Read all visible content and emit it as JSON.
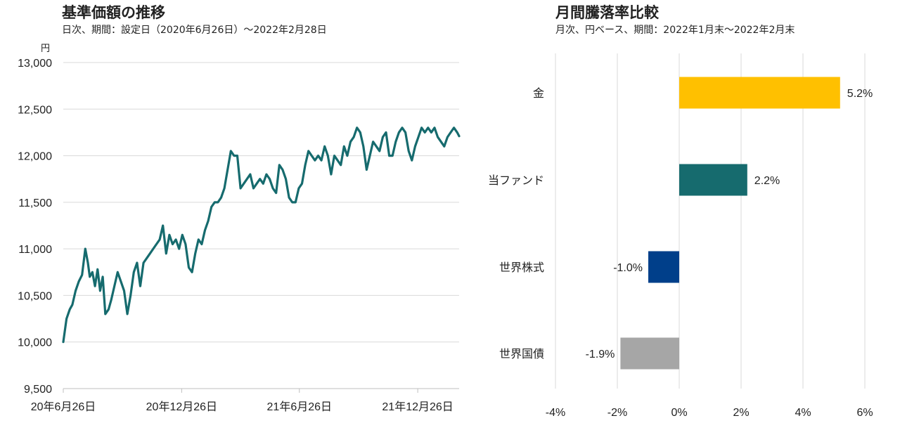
{
  "left_panel": {
    "title": "基準価額の推移",
    "subtitle": "日次、期間：設定日（2020年6月26日）～2022年2月28日"
  },
  "right_panel": {
    "title": "月間騰落率比較",
    "subtitle": "月次、円ベース、期間：2022年1月末～2022年2月末"
  },
  "colors": {
    "line": "#166b6e",
    "gold": "#ffc000",
    "fund": "#166b6e",
    "stocks": "#003f8a",
    "bonds": "#a6a6a6"
  },
  "chart_data": [
    {
      "type": "line",
      "title": "基準価額の推移",
      "ylabel": "円",
      "ylim": [
        9500,
        13000
      ],
      "yticks": [
        "9,500",
        "10,000",
        "10,500",
        "11,000",
        "11,500",
        "12,000",
        "12,500",
        "13,000"
      ],
      "xticks": [
        "20年6月26日",
        "20年12月26日",
        "21年6月26日",
        "21年12月26日"
      ],
      "grid": true,
      "series": [
        {
          "x": [
            "2020-06-26",
            "2020-07-01",
            "2020-07-06",
            "2020-07-10",
            "2020-07-15",
            "2020-07-20",
            "2020-07-25",
            "2020-07-30",
            "2020-08-03",
            "2020-08-06",
            "2020-08-10",
            "2020-08-14",
            "2020-08-18",
            "2020-08-22",
            "2020-08-26",
            "2020-08-30",
            "2020-09-04",
            "2020-09-08",
            "2020-09-13",
            "2020-09-18",
            "2020-09-23",
            "2020-09-28",
            "2020-10-03",
            "2020-10-08",
            "2020-10-13",
            "2020-10-18",
            "2020-10-23",
            "2020-10-28",
            "2020-11-02",
            "2020-11-07",
            "2020-11-12",
            "2020-11-17",
            "2020-11-22",
            "2020-11-27",
            "2020-12-02",
            "2020-12-07",
            "2020-12-12",
            "2020-12-17",
            "2020-12-22",
            "2020-12-27",
            "2021-01-01",
            "2021-01-06",
            "2021-01-11",
            "2021-01-16",
            "2021-01-21",
            "2021-01-26",
            "2021-01-31",
            "2021-02-05",
            "2021-02-10",
            "2021-02-15",
            "2021-02-20",
            "2021-02-25",
            "2021-03-02",
            "2021-03-07",
            "2021-03-12",
            "2021-03-17",
            "2021-03-22",
            "2021-03-27",
            "2021-04-01",
            "2021-04-06",
            "2021-04-11",
            "2021-04-16",
            "2021-04-21",
            "2021-04-26",
            "2021-05-01",
            "2021-05-06",
            "2021-05-11",
            "2021-05-16",
            "2021-05-21",
            "2021-05-26",
            "2021-05-31",
            "2021-06-05",
            "2021-06-10",
            "2021-06-15",
            "2021-06-20",
            "2021-06-25",
            "2021-06-30",
            "2021-07-05",
            "2021-07-10",
            "2021-07-15",
            "2021-07-20",
            "2021-07-25",
            "2021-07-30",
            "2021-08-04",
            "2021-08-09",
            "2021-08-14",
            "2021-08-19",
            "2021-08-24",
            "2021-08-29",
            "2021-09-03",
            "2021-09-08",
            "2021-09-13",
            "2021-09-18",
            "2021-09-23",
            "2021-09-28",
            "2021-10-03",
            "2021-10-08",
            "2021-10-13",
            "2021-10-18",
            "2021-10-23",
            "2021-10-28",
            "2021-11-02",
            "2021-11-07",
            "2021-11-12",
            "2021-11-17",
            "2021-11-22",
            "2021-11-27",
            "2021-12-02",
            "2021-12-07",
            "2021-12-12",
            "2021-12-17",
            "2021-12-22",
            "2021-12-27",
            "2022-01-01",
            "2022-01-06",
            "2022-01-11",
            "2022-01-16",
            "2022-01-21",
            "2022-01-26",
            "2022-01-31",
            "2022-02-05",
            "2022-02-10",
            "2022-02-15",
            "2022-02-20",
            "2022-02-25",
            "2022-02-28"
          ],
          "y": [
            10000,
            10250,
            10350,
            10400,
            10550,
            10650,
            10720,
            11000,
            10850,
            10700,
            10750,
            10600,
            10780,
            10550,
            10700,
            10300,
            10350,
            10450,
            10600,
            10750,
            10650,
            10550,
            10300,
            10500,
            10750,
            10850,
            10600,
            10850,
            10900,
            10950,
            11000,
            11050,
            11100,
            11250,
            10950,
            11150,
            11050,
            11100,
            11000,
            11150,
            11050,
            10800,
            10750,
            10950,
            11100,
            11050,
            11200,
            11300,
            11450,
            11500,
            11500,
            11550,
            11650,
            11850,
            12050,
            12000,
            12000,
            11650,
            11700,
            11750,
            11800,
            11650,
            11700,
            11750,
            11700,
            11800,
            11750,
            11650,
            11600,
            11900,
            11850,
            11750,
            11550,
            11500,
            11500,
            11650,
            11700,
            11900,
            12050,
            12000,
            11950,
            12000,
            11950,
            12100,
            12000,
            11800,
            12000,
            11950,
            11900,
            12100,
            12000,
            12150,
            12200,
            12300,
            12250,
            12100,
            11850,
            12000,
            12150,
            12100,
            12050,
            12200,
            12250,
            12000,
            12000,
            12150,
            12250,
            12300,
            12250,
            12050,
            11950,
            12100,
            12200,
            12300,
            12250,
            12300,
            12250,
            12300,
            12200,
            12150,
            12100,
            12200,
            12250,
            12300,
            12250,
            12210
          ]
        }
      ]
    },
    {
      "type": "bar",
      "orientation": "horizontal",
      "title": "月間騰落率比較",
      "categories": [
        "金",
        "当ファンド",
        "世界株式",
        "世界国債"
      ],
      "values": [
        5.2,
        2.2,
        -1.0,
        -1.9
      ],
      "labels": [
        "5.2%",
        "2.2%",
        "-1.0%",
        "-1.9%"
      ],
      "xlim": [
        -4,
        6
      ],
      "xticks": [
        "-4%",
        "-2%",
        "0%",
        "2%",
        "4%",
        "6%"
      ],
      "grid": true
    }
  ]
}
